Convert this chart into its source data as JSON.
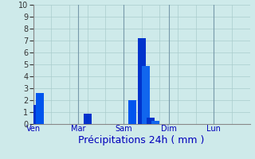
{
  "title": "Précipitations 24h ( mm )",
  "ylim": [
    0,
    10
  ],
  "yticks": [
    0,
    1,
    2,
    3,
    4,
    5,
    6,
    7,
    8,
    9,
    10
  ],
  "background_color": "#ceeaea",
  "grid_color": "#aacccc",
  "separator_color": "#7799aa",
  "bar_positions": [
    0.5,
    1.5,
    12,
    22,
    24,
    25,
    26,
    27,
    28
  ],
  "bar_heights": [
    1.6,
    2.6,
    0.85,
    2.0,
    7.2,
    4.9,
    0.55,
    0.3,
    0.0
  ],
  "bar_colors": [
    "#0033cc",
    "#0055ee",
    "#0033cc",
    "#0055ee",
    "#0033cc",
    "#1166ee",
    "#0033cc",
    "#1166ee",
    "#0033cc"
  ],
  "day_tick_positions": [
    0,
    10,
    20,
    30,
    40
  ],
  "day_labels": [
    "Ven",
    "Mar",
    "Sam",
    "Dim",
    "Lun"
  ],
  "separator_positions": [
    0,
    10,
    20,
    30,
    40
  ],
  "xlim": [
    0,
    48
  ],
  "title_color": "#0000bb",
  "title_fontsize": 9,
  "tick_fontsize": 7,
  "bar_width": 1.8
}
